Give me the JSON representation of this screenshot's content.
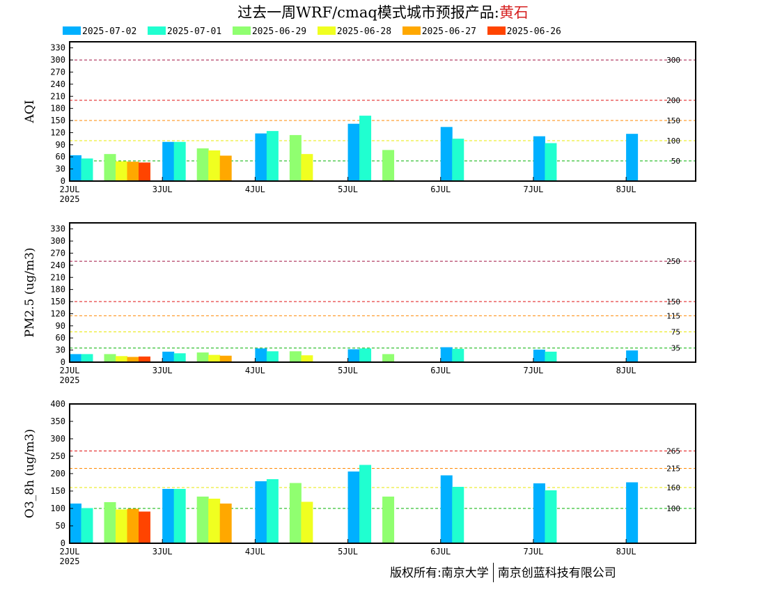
{
  "title": {
    "prefix": "过去一周WRF/cmaq模式城市预报产品:",
    "city": "黄石"
  },
  "legend": [
    {
      "label": "2025-07-02",
      "color": "#00b0ff"
    },
    {
      "label": "2025-07-01",
      "color": "#20ffd0"
    },
    {
      "label": "2025-06-29",
      "color": "#90ff70"
    },
    {
      "label": "2025-06-28",
      "color": "#f0ff20"
    },
    {
      "label": "2025-06-27",
      "color": "#ffa800"
    },
    {
      "label": "2025-06-26",
      "color": "#ff4400"
    }
  ],
  "footer": {
    "left": "版权所有:南京大学",
    "right": "南京创蓝科技有限公司"
  },
  "chart_data": [
    {
      "type": "bar",
      "ylabel": "AQI",
      "ylim": [
        0,
        345
      ],
      "yticks": [
        0,
        30,
        60,
        90,
        120,
        150,
        180,
        210,
        240,
        270,
        300,
        330
      ],
      "xlim": [
        0,
        6.75
      ],
      "xticks": [
        {
          "label": "2JUL",
          "sub": "2025"
        },
        {
          "label": "3JUL"
        },
        {
          "label": "4JUL"
        },
        {
          "label": "5JUL"
        },
        {
          "label": "6JUL"
        },
        {
          "label": "7JUL"
        },
        {
          "label": "8JUL"
        }
      ],
      "thresholds": [
        {
          "value": 300,
          "label": "300",
          "color": "#a01040"
        },
        {
          "value": 200,
          "label": "200",
          "color": "#e01010"
        },
        {
          "value": 150,
          "label": "150",
          "color": "#ff8800"
        },
        {
          "value": 100,
          "label": "100",
          "color": "#e8e800"
        },
        {
          "value": 50,
          "label": "50",
          "color": "#00b000"
        }
      ],
      "series": [
        {
          "name": "2025-07-02",
          "points": [
            [
              0,
              64
            ],
            [
              1,
              97
            ],
            [
              2,
              118
            ],
            [
              3,
              142
            ],
            [
              4,
              134
            ],
            [
              5,
              111
            ],
            [
              6,
              117
            ]
          ]
        },
        {
          "name": "2025-07-01",
          "points": [
            [
              0,
              56
            ],
            [
              1,
              97
            ],
            [
              2,
              124
            ],
            [
              3,
              162
            ],
            [
              4,
              105
            ],
            [
              5,
              94
            ]
          ]
        },
        {
          "name": "2025-06-29",
          "points": [
            [
              0,
              67
            ],
            [
              1,
              81
            ],
            [
              2,
              114
            ],
            [
              3,
              77
            ]
          ]
        },
        {
          "name": "2025-06-28",
          "points": [
            [
              0,
              49
            ],
            [
              1,
              76
            ],
            [
              2,
              67
            ]
          ]
        },
        {
          "name": "2025-06-27",
          "points": [
            [
              0,
              48
            ],
            [
              1,
              63
            ]
          ]
        },
        {
          "name": "2025-06-26",
          "points": [
            [
              0,
              46
            ]
          ]
        }
      ]
    },
    {
      "type": "bar",
      "ylabel": "PM2.5 (ug/m3)",
      "ylim": [
        0,
        345
      ],
      "yticks": [
        0,
        30,
        60,
        90,
        120,
        150,
        180,
        210,
        240,
        270,
        300,
        330
      ],
      "xlim": [
        0,
        6.75
      ],
      "xticks": [
        {
          "label": "2JUL",
          "sub": "2025"
        },
        {
          "label": "3JUL"
        },
        {
          "label": "4JUL"
        },
        {
          "label": "5JUL"
        },
        {
          "label": "6JUL"
        },
        {
          "label": "7JUL"
        },
        {
          "label": "8JUL"
        }
      ],
      "thresholds": [
        {
          "value": 250,
          "label": "250",
          "color": "#a01040"
        },
        {
          "value": 150,
          "label": "150",
          "color": "#e01010"
        },
        {
          "value": 115,
          "label": "115",
          "color": "#ff8800"
        },
        {
          "value": 75,
          "label": "75",
          "color": "#e8e800"
        },
        {
          "value": 35,
          "label": "35",
          "color": "#00b000"
        }
      ],
      "series": [
        {
          "name": "2025-07-02",
          "points": [
            [
              0,
              20
            ],
            [
              1,
              26
            ],
            [
              2,
              34
            ],
            [
              3,
              32
            ],
            [
              4,
              37
            ],
            [
              5,
              31
            ],
            [
              6,
              29
            ]
          ]
        },
        {
          "name": "2025-07-01",
          "points": [
            [
              0,
              20
            ],
            [
              1,
              22
            ],
            [
              2,
              27
            ],
            [
              3,
              34
            ],
            [
              4,
              33
            ],
            [
              5,
              26
            ]
          ]
        },
        {
          "name": "2025-06-29",
          "points": [
            [
              0,
              20
            ],
            [
              1,
              24
            ],
            [
              2,
              27
            ],
            [
              3,
              20
            ]
          ]
        },
        {
          "name": "2025-06-28",
          "points": [
            [
              0,
              15
            ],
            [
              1,
              18
            ],
            [
              2,
              17
            ]
          ]
        },
        {
          "name": "2025-06-27",
          "points": [
            [
              0,
              13
            ],
            [
              1,
              16
            ]
          ]
        },
        {
          "name": "2025-06-26",
          "points": [
            [
              0,
              14
            ]
          ]
        }
      ]
    },
    {
      "type": "bar",
      "ylabel": "O3_8h (ug/m3)",
      "ylim": [
        0,
        400
      ],
      "yticks": [
        0,
        50,
        100,
        150,
        200,
        250,
        300,
        350,
        400
      ],
      "xlim": [
        0,
        6.75
      ],
      "xticks": [
        {
          "label": "2JUL",
          "sub": "2025"
        },
        {
          "label": "3JUL"
        },
        {
          "label": "4JUL"
        },
        {
          "label": "5JUL"
        },
        {
          "label": "6JUL"
        },
        {
          "label": "7JUL"
        },
        {
          "label": "8JUL"
        }
      ],
      "thresholds": [
        {
          "value": 265,
          "label": "265",
          "color": "#e01010"
        },
        {
          "value": 215,
          "label": "215",
          "color": "#ff8800"
        },
        {
          "value": 160,
          "label": "160",
          "color": "#e8e800"
        },
        {
          "value": 100,
          "label": "100",
          "color": "#00b000"
        }
      ],
      "series": [
        {
          "name": "2025-07-02",
          "points": [
            [
              0,
              114
            ],
            [
              1,
              156
            ],
            [
              2,
              178
            ],
            [
              3,
              206
            ],
            [
              4,
              195
            ],
            [
              5,
              172
            ],
            [
              6,
              175
            ]
          ]
        },
        {
          "name": "2025-07-01",
          "points": [
            [
              0,
              101
            ],
            [
              1,
              156
            ],
            [
              2,
              184
            ],
            [
              3,
              225
            ],
            [
              4,
              162
            ],
            [
              5,
              152
            ]
          ]
        },
        {
          "name": "2025-06-29",
          "points": [
            [
              0,
              118
            ],
            [
              1,
              134
            ],
            [
              2,
              173
            ],
            [
              3,
              134
            ]
          ]
        },
        {
          "name": "2025-06-28",
          "points": [
            [
              0,
              97
            ],
            [
              1,
              128
            ],
            [
              2,
              119
            ]
          ]
        },
        {
          "name": "2025-06-27",
          "points": [
            [
              0,
              99
            ],
            [
              1,
              114
            ]
          ]
        },
        {
          "name": "2025-06-26",
          "points": [
            [
              0,
              91
            ]
          ]
        }
      ]
    }
  ]
}
